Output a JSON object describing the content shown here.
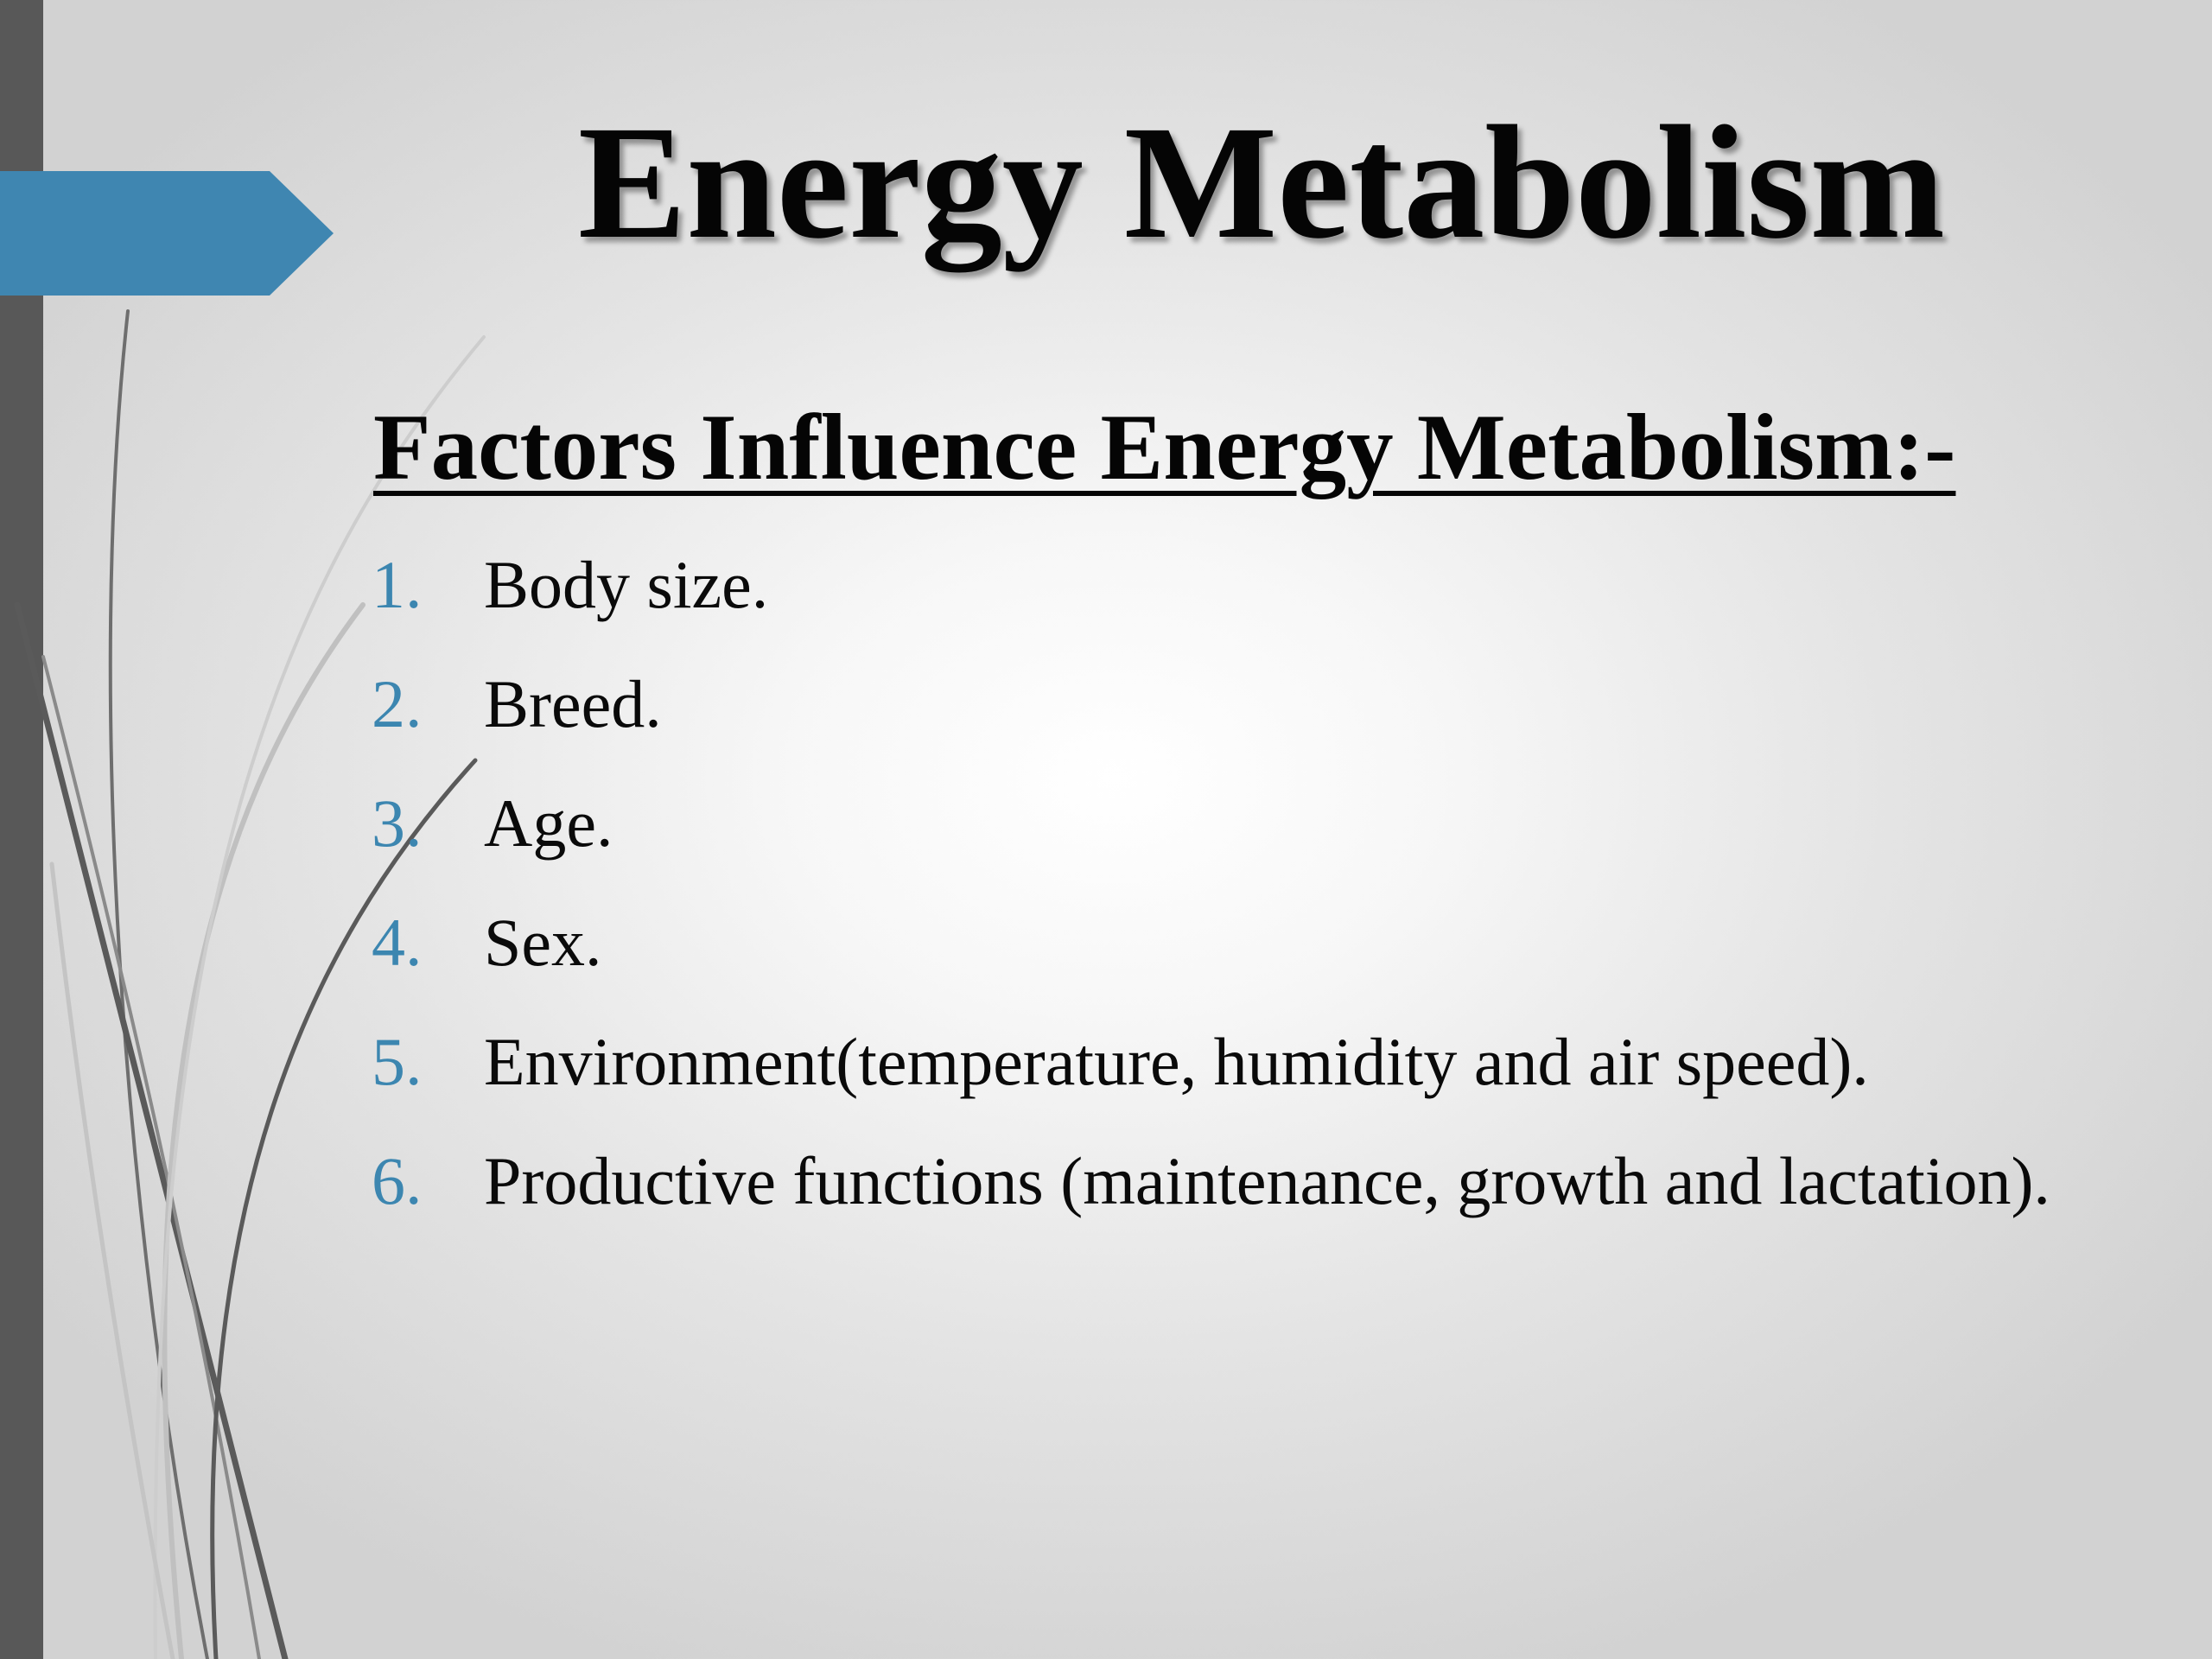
{
  "slide": {
    "title": "Energy Metabolism",
    "subheading": "Factors Influence Energy Metabolism:-",
    "factors": [
      {
        "number": "1.",
        "text": "Body size."
      },
      {
        "number": "2.",
        "text": "Breed."
      },
      {
        "number": "3.",
        "text": "Age."
      },
      {
        "number": "4.",
        "text": "Sex."
      },
      {
        "number": "5.",
        "text": "Environment(temperature, humidity and air speed)."
      },
      {
        "number": "6.",
        "text": "Productive functions (maintenance, growth and lactation)."
      }
    ]
  },
  "theme": {
    "accent_color": "#3f86b1",
    "left_bar_color": "#585858",
    "number_color": "#3c86b0",
    "decor_icons": [
      "arrow-pennant-icon",
      "curved-lines-decoration"
    ]
  }
}
